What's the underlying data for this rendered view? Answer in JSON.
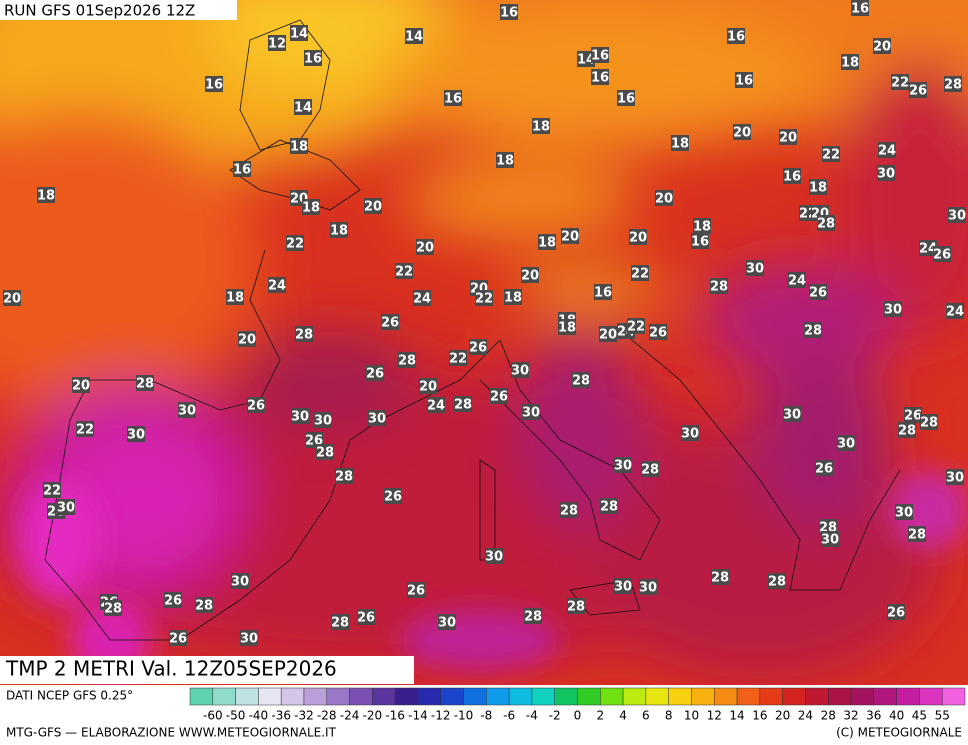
{
  "header": {
    "run": "RUN GFS 01Sep2026 12Z",
    "title": "TMP 2 METRI Val. 12Z05SEP2026"
  },
  "map_labels": [
    16,
    16,
    14,
    12,
    14,
    16,
    16,
    20,
    16,
    14,
    16,
    16,
    18,
    16,
    22,
    26,
    28,
    14,
    16,
    16,
    18,
    20,
    20,
    18,
    18,
    22,
    24,
    16,
    18,
    16,
    18,
    30,
    18,
    20,
    18,
    20,
    20,
    22,
    20,
    28,
    30,
    18,
    18,
    16,
    22,
    20,
    18,
    20,
    20,
    24,
    26,
    30,
    22,
    20,
    22,
    24,
    26,
    20,
    18,
    24,
    28,
    24,
    20,
    22,
    18,
    16,
    30,
    24,
    26,
    18,
    18,
    20,
    24,
    22,
    26,
    28,
    20,
    28,
    26,
    28,
    22,
    26,
    30,
    28,
    20,
    28,
    20,
    24,
    28,
    26,
    30,
    26,
    30,
    30,
    30,
    30,
    30,
    26,
    28,
    28,
    22,
    30,
    26,
    28,
    30,
    30,
    30,
    28,
    26,
    30,
    28,
    22,
    28,
    30,
    26,
    28,
    28,
    30,
    28,
    30,
    28,
    30,
    30,
    30,
    30,
    28,
    28,
    26,
    26,
    28,
    26,
    28,
    28,
    26,
    28,
    26,
    28,
    30,
    26,
    30
  ],
  "footer": {
    "source": "DATI NCEP GFS 0.25°",
    "credit": "MTG-GFS — ELABORAZIONE WWW.METEOGIORNALE.IT",
    "copyright": "(C) METEOGIORNALE",
    "colorbar": [
      "-60",
      "-50",
      "-40",
      "-36",
      "-32",
      "-28",
      "-24",
      "-20",
      "-16",
      "-14",
      "-12",
      "-10",
      "-8",
      "-6",
      "-4",
      "-2",
      "0",
      "2",
      "4",
      "6",
      "8",
      "10",
      "12",
      "14",
      "16",
      "20",
      "24",
      "28",
      "32",
      "36",
      "40",
      "45",
      "55"
    ]
  }
}
